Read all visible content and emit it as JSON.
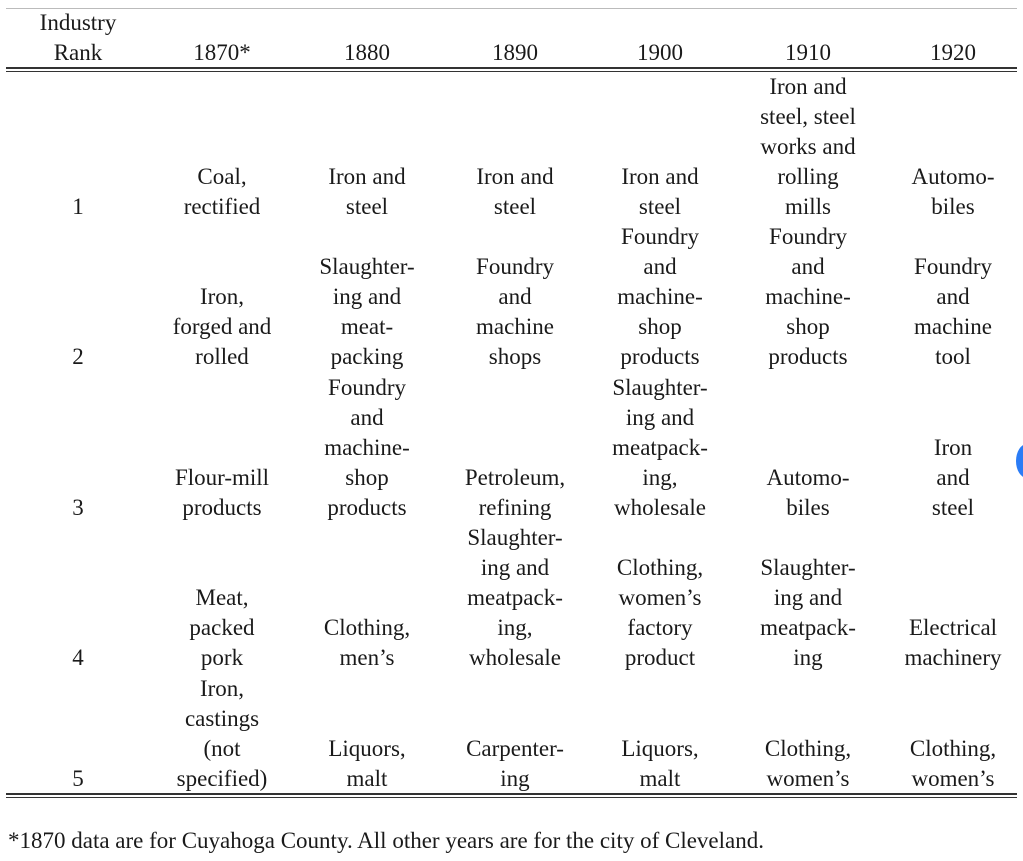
{
  "table": {
    "headers": [
      "Industry\nRank",
      "1870*",
      "1880",
      "1890",
      "1900",
      "1910",
      "1920"
    ],
    "rows": [
      {
        "rank": "1",
        "cells": [
          "Coal,\nrectified",
          "Iron and\nsteel",
          "Iron and\nsteel",
          "Iron and\nsteel",
          "Iron and\nsteel, steel\nworks and\nrolling\nmills",
          "Automo-\nbiles"
        ]
      },
      {
        "rank": "2",
        "cells": [
          "Iron,\nforged and\nrolled",
          "Slaughter-\ning and\nmeat-\npacking",
          "Foundry\nand\nmachine\nshops",
          "Foundry\nand\nmachine-\nshop\nproducts",
          "Foundry\nand\nmachine-\nshop\nproducts",
          "Foundry\nand\nmachine\ntool"
        ]
      },
      {
        "rank": "3",
        "cells": [
          "Flour-mill\nproducts",
          "Foundry\nand\nmachine-\nshop\nproducts",
          "Petroleum,\nrefining",
          "Slaughter-\ning and\nmeatpack-\ning,\nwholesale",
          "Automo-\nbiles",
          "Iron and\nsteel"
        ]
      },
      {
        "rank": "4",
        "cells": [
          "Meat,\npacked\npork",
          "Clothing,\nmen’s",
          "Slaughter-\ning and\nmeatpack-\ning,\nwholesale",
          "Clothing,\nwomen’s\nfactory\nproduct",
          "Slaughter-\ning and\nmeatpack-\ning",
          "Electrical\nmachinery"
        ]
      },
      {
        "rank": "5",
        "cells": [
          "Iron,\ncastings\n(not\nspecified)",
          "Liquors,\nmalt",
          "Carpenter-\ning",
          "Liquors,\nmalt",
          "Clothing,\nwomen’s",
          "Clothing,\nwomen’s"
        ]
      }
    ]
  },
  "footnote": "*1870 data are for Cuyahoga County.  All other years are for the city of Cleveland."
}
